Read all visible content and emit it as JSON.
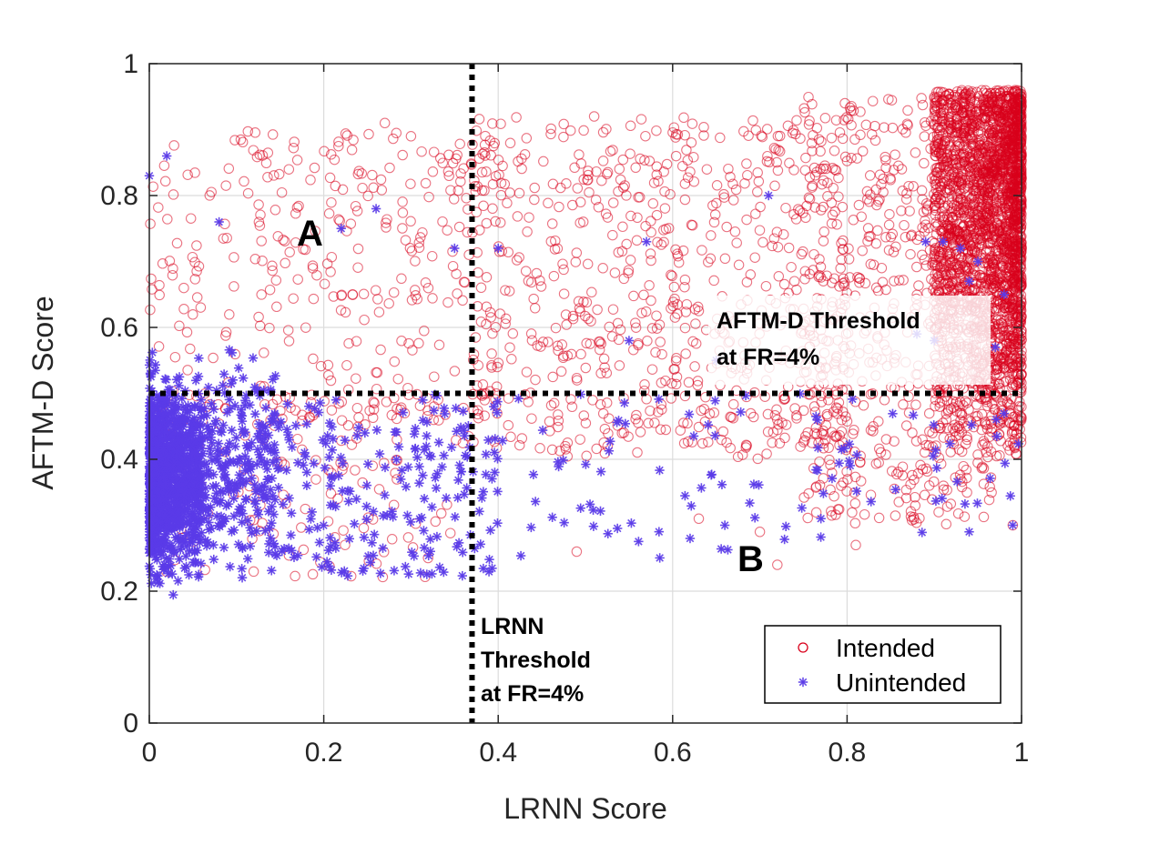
{
  "chart_data": {
    "type": "scatter",
    "xlabel": "LRNN Score",
    "ylabel": "AFTM-D Score",
    "xlim": [
      0,
      1
    ],
    "ylim": [
      0,
      1
    ],
    "xticks": [
      "0",
      "0.2",
      "0.4",
      "0.6",
      "0.8",
      "1"
    ],
    "yticks": [
      "0",
      "0.2",
      "0.4",
      "0.6",
      "0.8",
      "1"
    ],
    "xtick_values": [
      0,
      0.2,
      0.4,
      0.6,
      0.8,
      1
    ],
    "ytick_values": [
      0,
      0.2,
      0.4,
      0.6,
      0.8,
      1
    ],
    "grid": true,
    "legend_position": "bottom-right",
    "thresholds": {
      "lrnn_x": 0.37,
      "aftm_y": 0.5
    },
    "series": [
      {
        "name": "Intended",
        "marker": "circle-open",
        "color": "#d9001b",
        "clusters": [
          {
            "x_range": [
              0.9,
              1.0
            ],
            "y_range": [
              0.4,
              0.96
            ],
            "count": 2600
          },
          {
            "x_range": [
              0.75,
              0.97
            ],
            "y_range": [
              0.3,
              0.95
            ],
            "count": 600
          },
          {
            "x_range": [
              0.35,
              0.8
            ],
            "y_range": [
              0.4,
              0.92
            ],
            "count": 700
          },
          {
            "x_range": [
              0.0,
              0.4
            ],
            "y_range": [
              0.45,
              0.9
            ],
            "count": 320
          },
          {
            "x_range": [
              0.0,
              0.35
            ],
            "y_range": [
              0.22,
              0.5
            ],
            "count": 120
          }
        ],
        "points": [
          [
            0.27,
            0.91
          ],
          [
            0.51,
            0.92
          ],
          [
            0.3,
            0.89
          ],
          [
            0.49,
            0.26
          ],
          [
            0.72,
            0.24
          ],
          [
            0.7,
            0.29
          ],
          [
            0.63,
            0.31
          ],
          [
            0.81,
            0.27
          ],
          [
            0.93,
            0.37
          ],
          [
            0.83,
            0.45
          ],
          [
            0.99,
            0.3
          ]
        ]
      },
      {
        "name": "Unintended",
        "marker": "asterisk",
        "color": "#5a3be8",
        "clusters": [
          {
            "x_range": [
              0.0,
              0.06
            ],
            "y_range": [
              0.17,
              0.55
            ],
            "count": 900
          },
          {
            "x_range": [
              0.0,
              0.15
            ],
            "y_range": [
              0.2,
              0.6
            ],
            "count": 500
          },
          {
            "x_range": [
              0.1,
              0.4
            ],
            "y_range": [
              0.22,
              0.5
            ],
            "count": 230
          },
          {
            "x_range": [
              0.3,
              0.75
            ],
            "y_range": [
              0.25,
              0.5
            ],
            "count": 80
          },
          {
            "x_range": [
              0.75,
              1.0
            ],
            "y_range": [
              0.28,
              0.5
            ],
            "count": 40
          }
        ],
        "points": [
          [
            0.0,
            0.83
          ],
          [
            0.02,
            0.86
          ],
          [
            0.08,
            0.76
          ],
          [
            0.26,
            0.78
          ],
          [
            0.22,
            0.75
          ],
          [
            0.35,
            0.72
          ],
          [
            0.4,
            0.72
          ],
          [
            0.57,
            0.73
          ],
          [
            0.71,
            0.8
          ],
          [
            0.89,
            0.73
          ],
          [
            0.91,
            0.73
          ],
          [
            0.93,
            0.72
          ],
          [
            0.95,
            0.7
          ],
          [
            0.94,
            0.67
          ],
          [
            0.98,
            0.65
          ],
          [
            0.88,
            0.59
          ],
          [
            0.9,
            0.58
          ],
          [
            0.97,
            0.57
          ],
          [
            0.55,
            0.58
          ],
          [
            0.65,
            0.55
          ],
          [
            0.94,
            0.29
          ],
          [
            0.99,
            0.3
          ],
          [
            0.77,
            0.31
          ],
          [
            0.62,
            0.28
          ]
        ]
      }
    ],
    "annotations": {
      "region_a": "A",
      "region_b": "B",
      "aftm_threshold_line1": "AFTM-D Threshold",
      "aftm_threshold_line2": "at FR=4%",
      "lrnn_threshold_line1": "LRNN",
      "lrnn_threshold_line2": "Threshold",
      "lrnn_threshold_line3": "at FR=4%"
    }
  }
}
